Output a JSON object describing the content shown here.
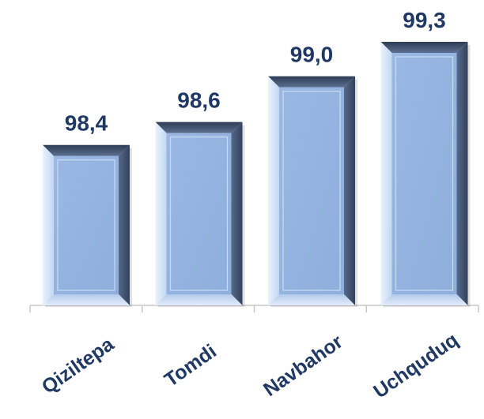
{
  "chart_data": {
    "type": "bar",
    "title": "",
    "xlabel": "",
    "ylabel": "",
    "categories": [
      "Qiziltepa",
      "Tomdi",
      "Navbahor",
      "Uchquduq"
    ],
    "values": [
      98.4,
      98.6,
      99.0,
      99.3
    ],
    "value_labels": [
      "98,4",
      "98,6",
      "99,0",
      "99,3"
    ],
    "ylim": [
      97.0,
      99.3
    ],
    "grid": false,
    "legend": "none"
  },
  "colors": {
    "bar_face": "#95b3e0",
    "bar_bevel_light": "#d6e6fb",
    "bar_bevel_dark": "#4c5f7e",
    "label_text": "#1f3864",
    "axis": "#c8c8c8"
  }
}
